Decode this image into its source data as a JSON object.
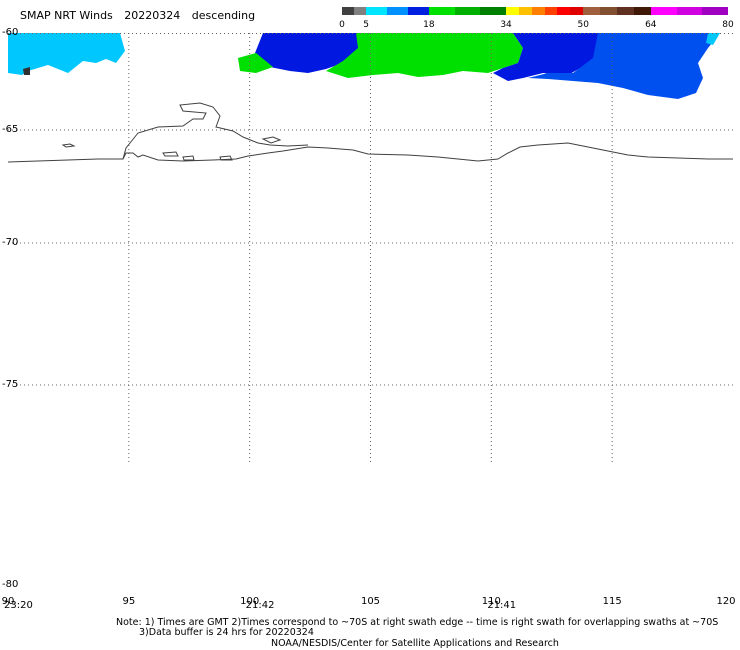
{
  "header": {
    "product": "SMAP NRT Winds",
    "date": "20220324",
    "pass": "descending"
  },
  "colorbar": {
    "tick_labels": [
      "0",
      "5",
      "18",
      "34",
      "50",
      "64",
      "80"
    ],
    "tick_values": [
      0,
      5,
      18,
      34,
      50,
      64,
      80
    ],
    "segments": [
      {
        "to": 5,
        "colors": [
          "#404040",
          "#808080"
        ]
      },
      {
        "to": 18,
        "colors": [
          "#00e5ff",
          "#0090ff",
          "#0020e0"
        ]
      },
      {
        "to": 34,
        "colors": [
          "#00e000",
          "#00b000",
          "#008000"
        ]
      },
      {
        "to": 50,
        "colors": [
          "#ffff00",
          "#ffc000",
          "#ff8000",
          "#ff4000",
          "#ff0000",
          "#e00000"
        ]
      },
      {
        "to": 64,
        "colors": [
          "#a06040",
          "#805030",
          "#603020",
          "#401808"
        ]
      },
      {
        "to": 80,
        "colors": [
          "#ff00ff",
          "#d000e0",
          "#a000c0"
        ]
      }
    ]
  },
  "map": {
    "lat_labels": [
      "-60",
      "-65",
      "-70",
      "-75",
      "-80"
    ],
    "lon_labels": [
      "90",
      "95",
      "100",
      "105",
      "110",
      "115",
      "120"
    ],
    "time_labels": [
      {
        "text": "23:20",
        "lon": 90
      },
      {
        "text": "21:42",
        "lon": 100
      },
      {
        "text": "21:41",
        "lon": 110
      }
    ],
    "colors": {
      "wind_light": "#00c8ff",
      "wind_mid": "#0050f0",
      "wind_dark": "#0018e0",
      "wind_green": "#00e000",
      "coast": "#404040",
      "grid": "#606060"
    }
  },
  "notes": {
    "line1": "Note: 1) Times are GMT 2)Times correspond to ~70S at right swath edge -- time is right swath for overlapping swaths at ~70S",
    "line2": "3)Data buffer is 24 hrs for 20220324",
    "line3": "NOAA/NESDIS/Center for Satellite Applications and Research"
  }
}
